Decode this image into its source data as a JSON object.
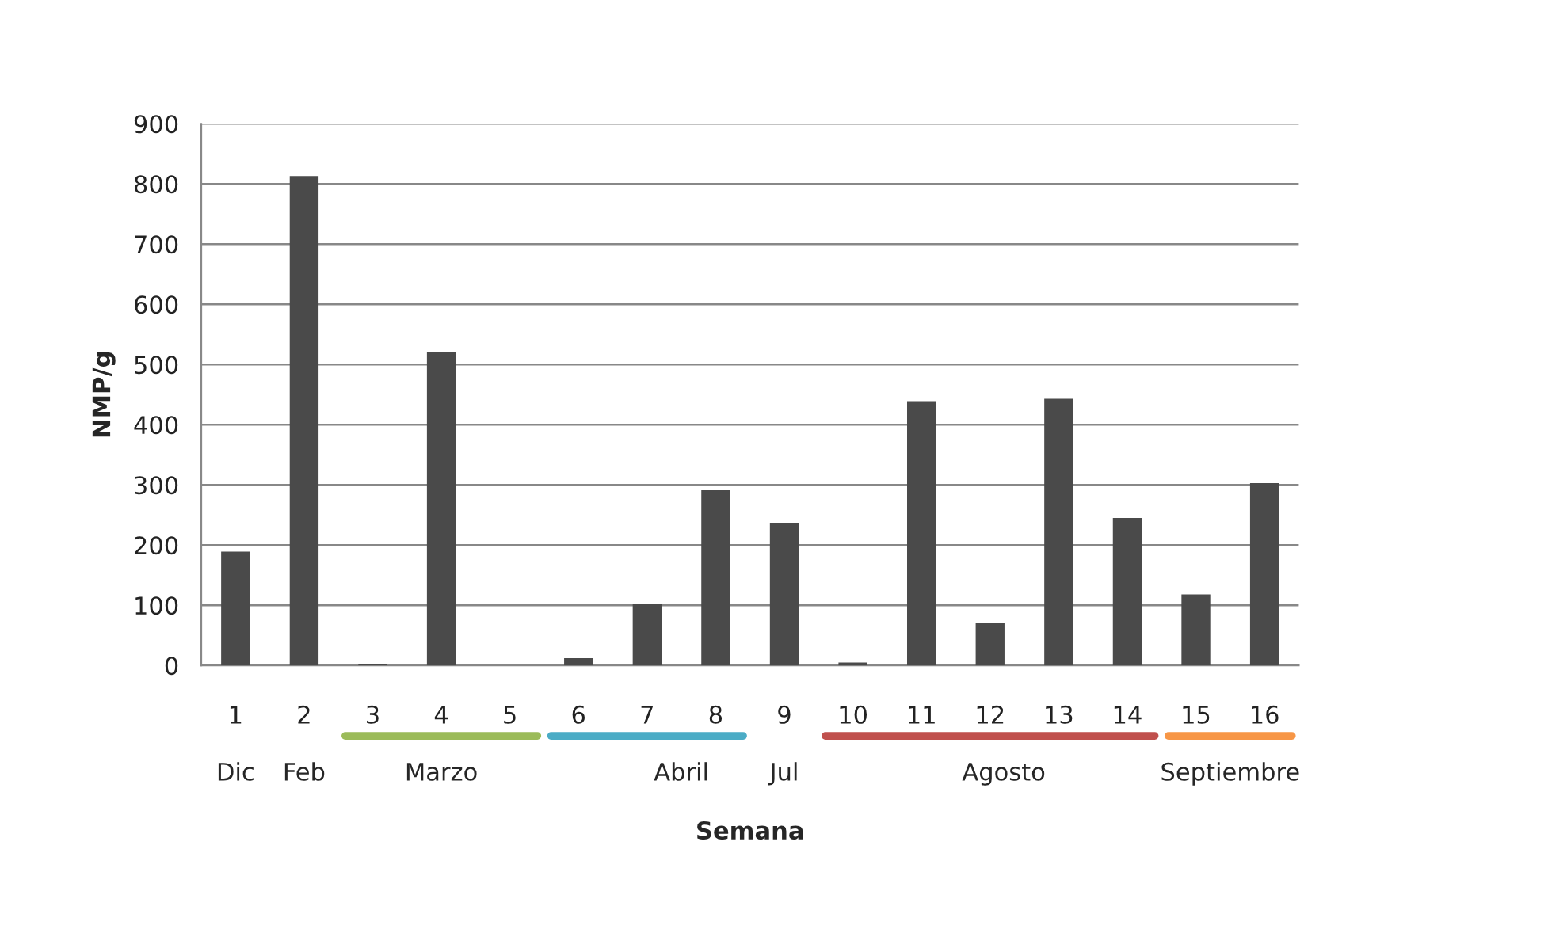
{
  "chart_data": {
    "type": "bar",
    "categories": [
      "1",
      "2",
      "3",
      "4",
      "5",
      "6",
      "7",
      "8",
      "9",
      "10",
      "11",
      "12",
      "13",
      "14",
      "15",
      "16"
    ],
    "values": [
      189,
      813,
      3,
      521,
      0,
      12,
      103,
      291,
      237,
      5,
      439,
      70,
      443,
      245,
      118,
      303
    ],
    "color": "#4a4a4a",
    "xlabel": "Semana",
    "ylabel": "NMP/g",
    "ylim": [
      0,
      900
    ],
    "yticks": [
      0,
      100,
      200,
      300,
      400,
      500,
      600,
      700,
      800,
      900
    ],
    "grid": "y",
    "annotations": [
      "Dic",
      "Feb",
      "Marzo",
      "Abril",
      "Jul",
      "Agosto",
      "Septiembre"
    ]
  }
}
